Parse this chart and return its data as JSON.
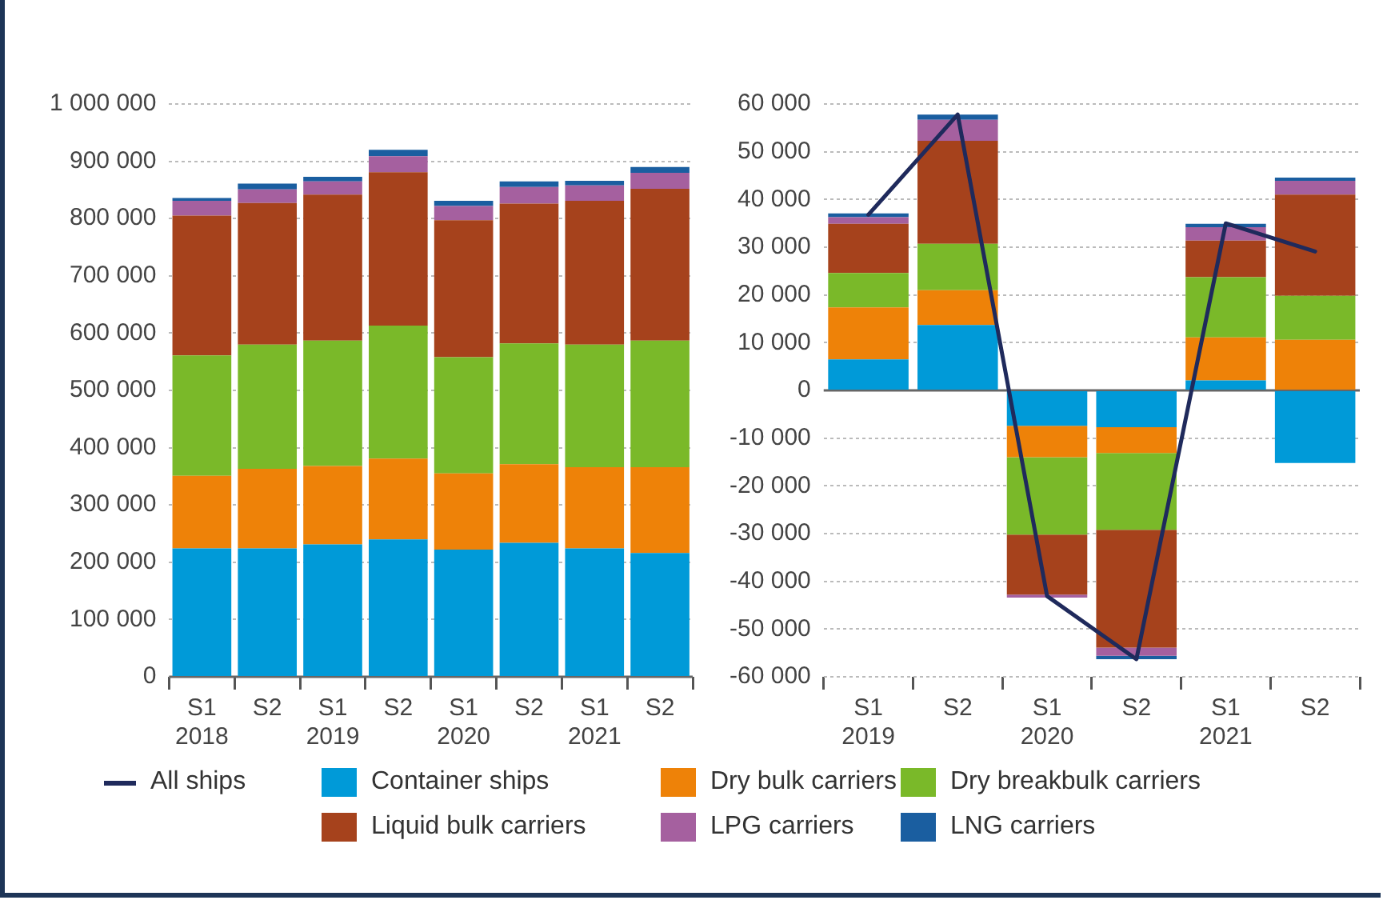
{
  "chart_data": [
    {
      "type": "bar",
      "stacked": true,
      "categories": [
        "S1\n2018",
        "S2",
        "S1\n2019",
        "S2",
        "S1\n2020",
        "S2",
        "S1\n2021",
        "S2"
      ],
      "series": [
        {
          "name": "Container ships",
          "color": "#009ad8",
          "values": [
            224000,
            224000,
            231000,
            240000,
            222000,
            234000,
            224000,
            216000
          ]
        },
        {
          "name": "Dry bulk carriers",
          "color": "#ee8208",
          "values": [
            127000,
            139000,
            137000,
            141000,
            133000,
            137000,
            142000,
            150000
          ]
        },
        {
          "name": "Dry breakbulk carriers",
          "color": "#7ab929",
          "values": [
            210000,
            217000,
            219000,
            232000,
            203000,
            211000,
            214000,
            221000
          ]
        },
        {
          "name": "Liquid bulk carriers",
          "color": "#a6421c",
          "values": [
            244000,
            247000,
            255000,
            268000,
            239000,
            244000,
            251000,
            265000
          ]
        },
        {
          "name": "LPG carriers",
          "color": "#a5609f",
          "values": [
            26000,
            24000,
            23000,
            28000,
            25000,
            29000,
            27000,
            28000
          ]
        },
        {
          "name": "LNG carriers",
          "color": "#1a5ea0",
          "values": [
            5000,
            10000,
            8000,
            11000,
            9000,
            10000,
            8000,
            10000
          ]
        }
      ],
      "ylim": [
        0,
        1000000
      ],
      "yticks": [
        0,
        {
          "value": 100000,
          "label": "100 000"
        },
        {
          "value": 200000,
          "label": "200 000"
        },
        {
          "value": 300000,
          "label": "300 000"
        },
        {
          "value": 400000,
          "label": "400 000"
        },
        {
          "value": 500000,
          "label": "500 000"
        },
        {
          "value": 600000,
          "label": "600 000"
        },
        {
          "value": 700000,
          "label": "700 000"
        },
        {
          "value": 800000,
          "label": "800 000"
        },
        {
          "value": 900000,
          "label": "900 000"
        },
        {
          "value": 1000000,
          "label": "1 000 000"
        }
      ],
      "grid": "y",
      "legend": "bottom"
    },
    {
      "type": "bar",
      "stacked": true,
      "categories": [
        "S1\n2019",
        "S2",
        "S1\n2020",
        "S2",
        "S1\n2021",
        "S2"
      ],
      "series": [
        {
          "name": "All ships",
          "type": "line",
          "color": "#1f2a5c",
          "values": [
            36800,
            57800,
            -43100,
            -56300,
            35000,
            29100
          ]
        },
        {
          "color": "#009ad8",
          "values": [
            6500,
            13700,
            -7400,
            -7700,
            2100,
            -15200
          ]
        },
        {
          "color": "#ee8208",
          "values": [
            10900,
            7300,
            -6600,
            -5400,
            9000,
            10600
          ]
        },
        {
          "color": "#7ab929",
          "values": [
            7200,
            9700,
            -16200,
            -16100,
            12600,
            9200
          ]
        },
        {
          "color": "#a6421c",
          "values": [
            10300,
            21600,
            -12600,
            -24700,
            7700,
            21200
          ]
        },
        {
          "color": "#a5609f",
          "values": [
            1400,
            4400,
            -600,
            -1700,
            2800,
            2900
          ]
        },
        {
          "color": "#1a5ea0",
          "values": [
            800,
            1100,
            0,
            -700,
            700,
            700
          ]
        }
      ],
      "ylim": [
        -60000,
        60000
      ],
      "yticks": [
        {
          "value": -60000,
          "label": "-60 000"
        },
        {
          "value": -50000,
          "label": "-50 000"
        },
        {
          "value": -40000,
          "label": "-40 000"
        },
        {
          "value": -30000,
          "label": "-30 000"
        },
        {
          "value": -20000,
          "label": "-20 000"
        },
        {
          "value": -10000,
          "label": "-10 000"
        },
        0,
        {
          "value": 10000,
          "label": "10 000"
        },
        {
          "value": 20000,
          "label": "20 000"
        },
        {
          "value": 30000,
          "label": "30 000"
        },
        {
          "value": 40000,
          "label": "40 000"
        },
        {
          "value": 50000,
          "label": "50 000"
        },
        {
          "value": 60000,
          "label": "60 000"
        }
      ],
      "grid": "y",
      "legend": "bottom",
      "marker": "none",
      "line_style": "solid"
    }
  ]
}
